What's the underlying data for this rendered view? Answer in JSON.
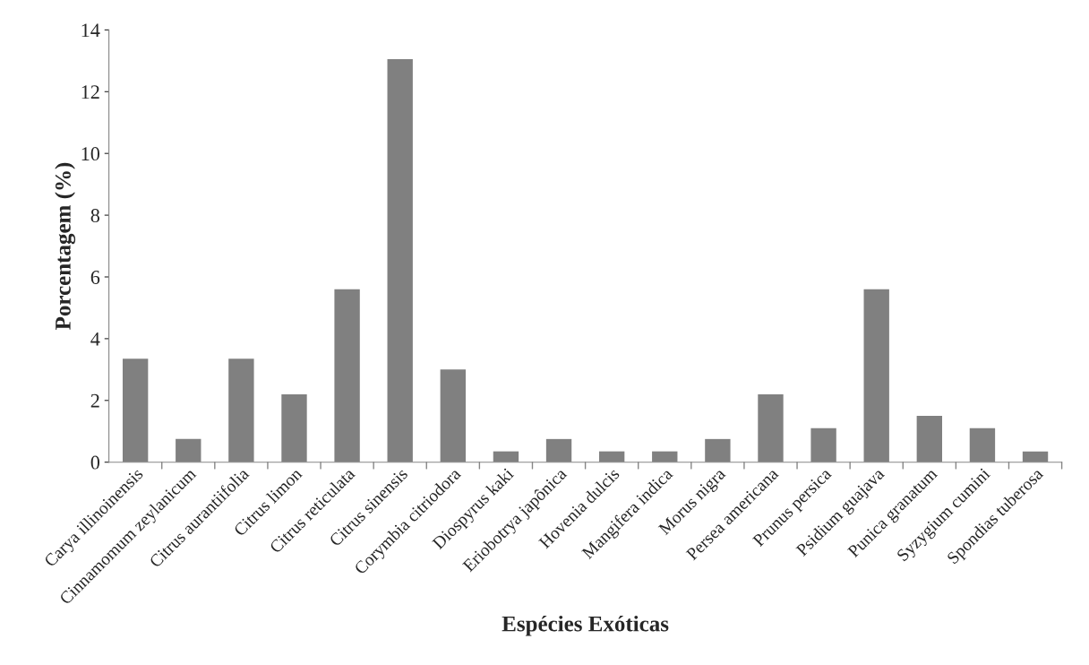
{
  "chart_data": {
    "type": "bar",
    "xlabel": "Espécies Exóticas",
    "ylabel": "Porcentagem (%)",
    "categories": [
      "Carya illinoinensis",
      "Cinnamomum zeylanicum",
      "Citrus aurantiifolia",
      "Citrus limon",
      "Citrus reticulata",
      "Citrus sinensis",
      "Corymbia citriodora",
      "Diospyrus kaki",
      "Eriobotrya japônica",
      "Hovenia dulcis",
      "Mangifera indica",
      "Morus nigra",
      "Persea americana",
      "Prunus persica",
      "Psidium guajava",
      "Punica granatum",
      "Syzygium cumini",
      "Spondias tuberosa"
    ],
    "values": [
      3.35,
      0.75,
      3.35,
      2.2,
      5.6,
      13.05,
      3.0,
      0.35,
      0.75,
      0.35,
      0.35,
      0.75,
      2.2,
      1.1,
      5.6,
      1.5,
      1.1,
      0.35
    ],
    "color": "#808080",
    "ylim": [
      0,
      14
    ],
    "yticks": [
      0,
      2,
      4,
      6,
      8,
      10,
      12,
      14
    ],
    "grid": false,
    "legend": false
  }
}
